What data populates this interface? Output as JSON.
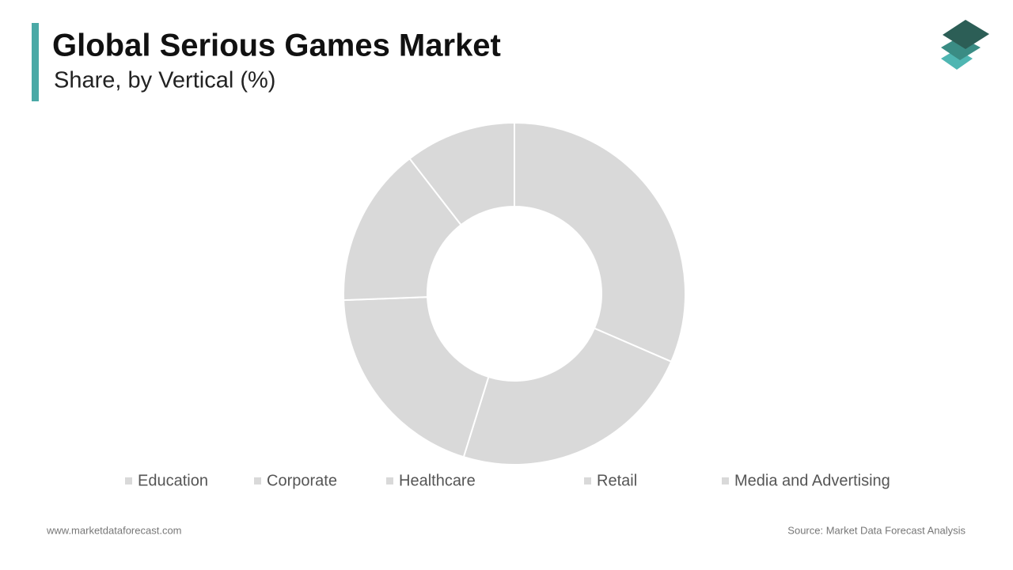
{
  "chart_data": {
    "type": "donut",
    "title": "Global Serious Games Market",
    "subtitle": "Share, by Vertical (%)",
    "categories": [
      "Education",
      "Corporate",
      "Healthcare",
      "Retail",
      "Media and Advertising"
    ],
    "values": [
      31.5,
      23.3,
      19.6,
      15.1,
      10.5
    ],
    "colors": [
      "#d9d9d9",
      "#d9d9d9",
      "#d9d9d9",
      "#d9d9d9",
      "#d9d9d9"
    ]
  },
  "footer": {
    "website": "www.marketdataforecast.com",
    "source": "Source: Market Data Forecast Analysis"
  }
}
